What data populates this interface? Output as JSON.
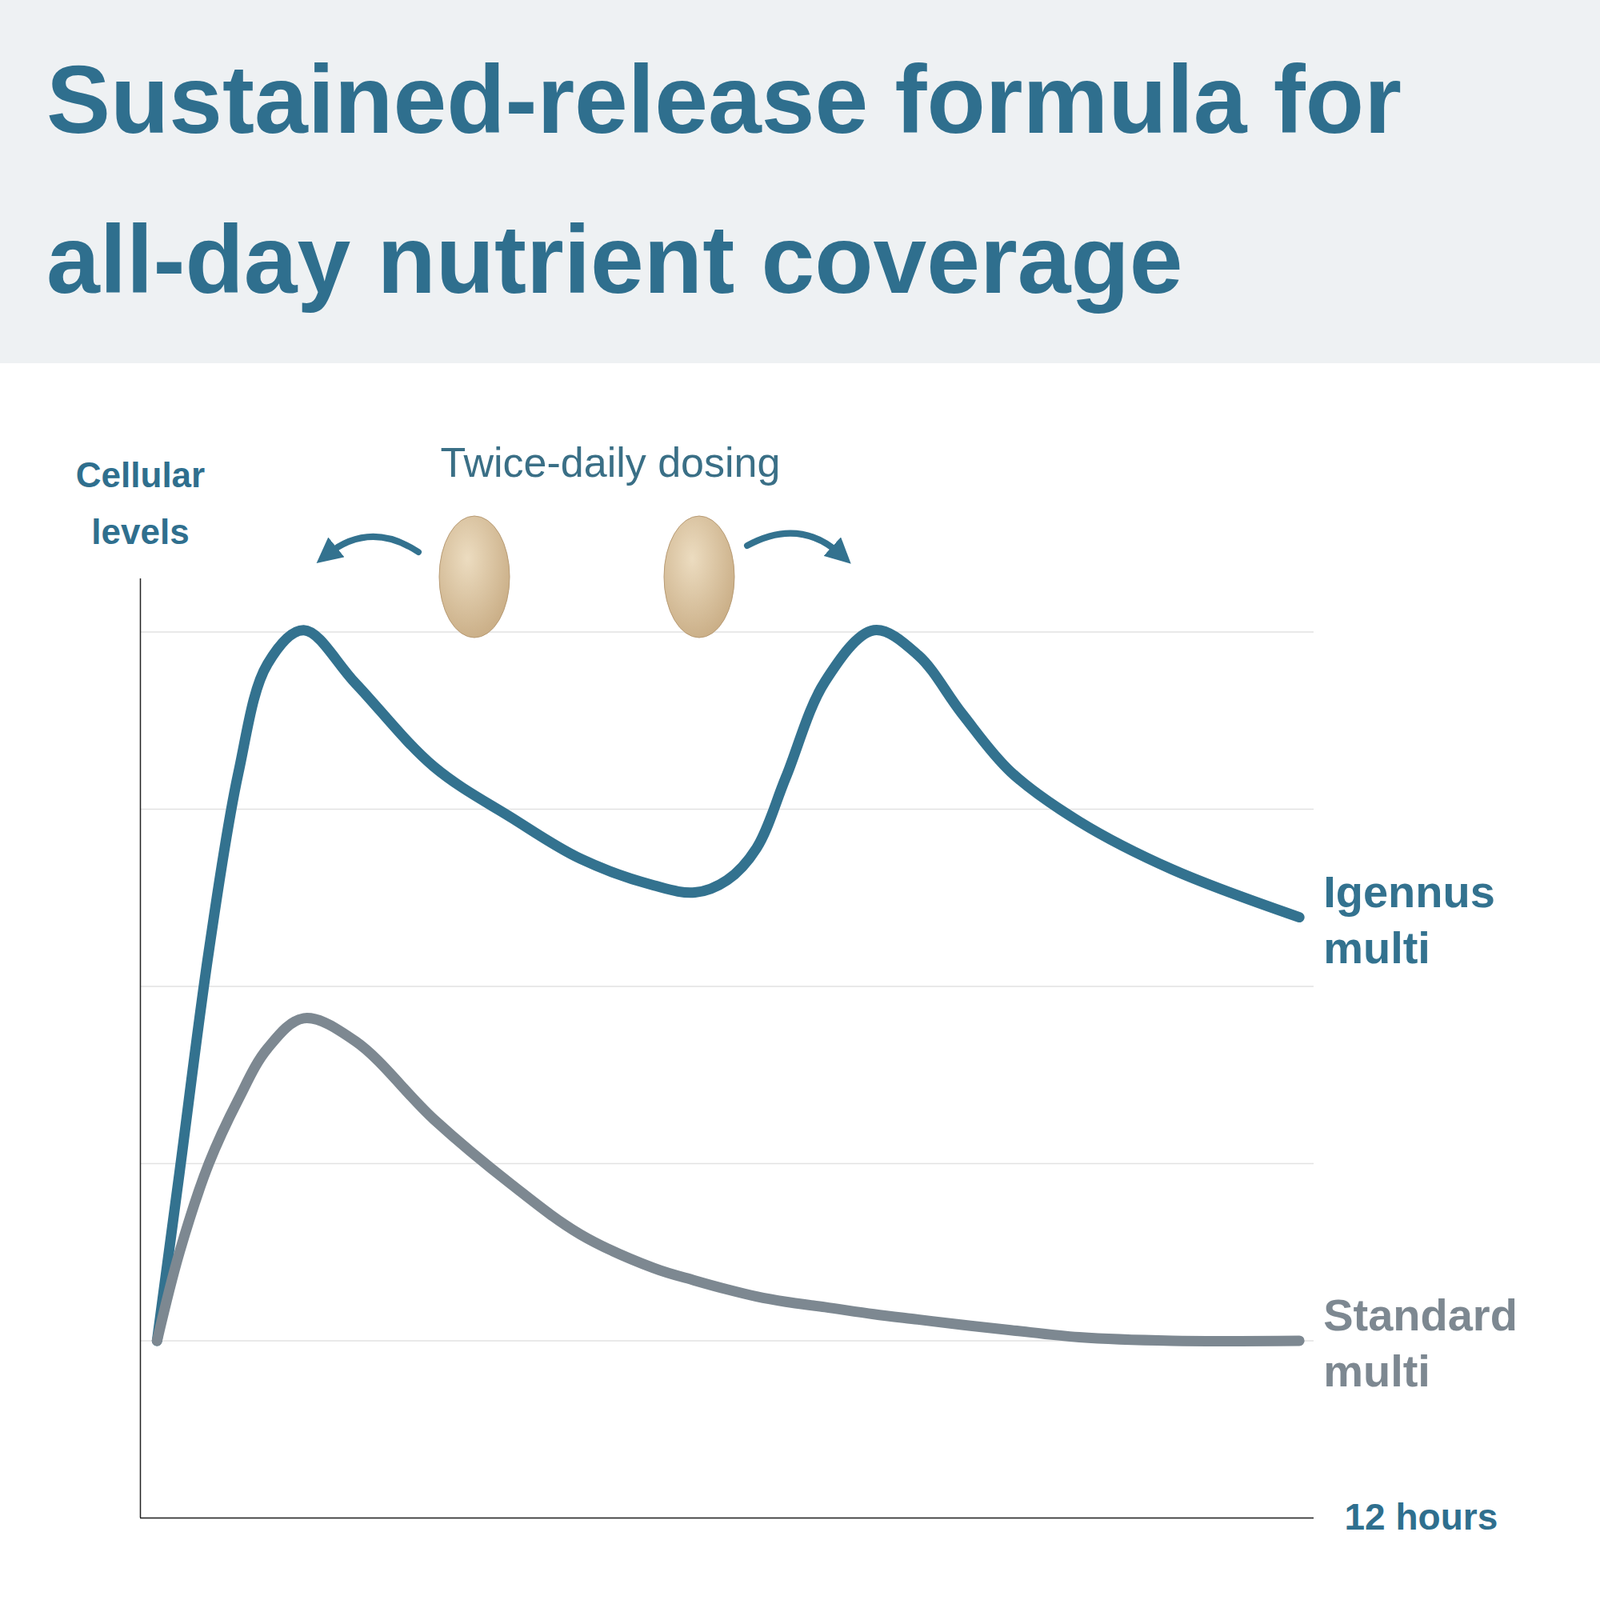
{
  "chart_data": {
    "type": "line",
    "title": "Sustained-release formula for all-day nutrient coverage",
    "ylabel": "Cellular levels",
    "xlabel": "12 hours",
    "annotation": "Twice-daily dosing",
    "x": [
      0.17,
      0.4,
      0.7,
      1.0,
      1.3,
      1.67,
      2.2,
      3.0,
      3.8,
      4.5,
      5.25,
      5.67,
      6.0,
      6.3,
      6.6,
      7.0,
      7.5,
      7.95,
      8.4,
      8.9,
      9.6,
      10.55,
      11.85
    ],
    "series": [
      {
        "name": "Igennus multi",
        "color": "#33728f",
        "values": [
          1.0,
          1.95,
          3.2,
          4.2,
          4.82,
          5.01,
          4.71,
          4.24,
          3.95,
          3.72,
          3.57,
          3.53,
          3.6,
          3.78,
          4.18,
          4.72,
          5.01,
          4.87,
          4.54,
          4.21,
          3.93,
          3.66,
          3.39
        ]
      },
      {
        "name": "Standard multi",
        "color": "#7d8891",
        "values": [
          1.0,
          1.5,
          2.0,
          2.36,
          2.65,
          2.82,
          2.69,
          2.25,
          1.88,
          1.6,
          1.41,
          1.34,
          1.29,
          1.25,
          1.22,
          1.19,
          1.15,
          1.12,
          1.09,
          1.06,
          1.02,
          1.0,
          1.0
        ]
      }
    ],
    "xlim": [
      0,
      12
    ],
    "ylim": [
      0,
      5.3
    ],
    "yticks": [
      0,
      1,
      2,
      3,
      4,
      5
    ],
    "grid": true,
    "tick_labels": false
  }
}
